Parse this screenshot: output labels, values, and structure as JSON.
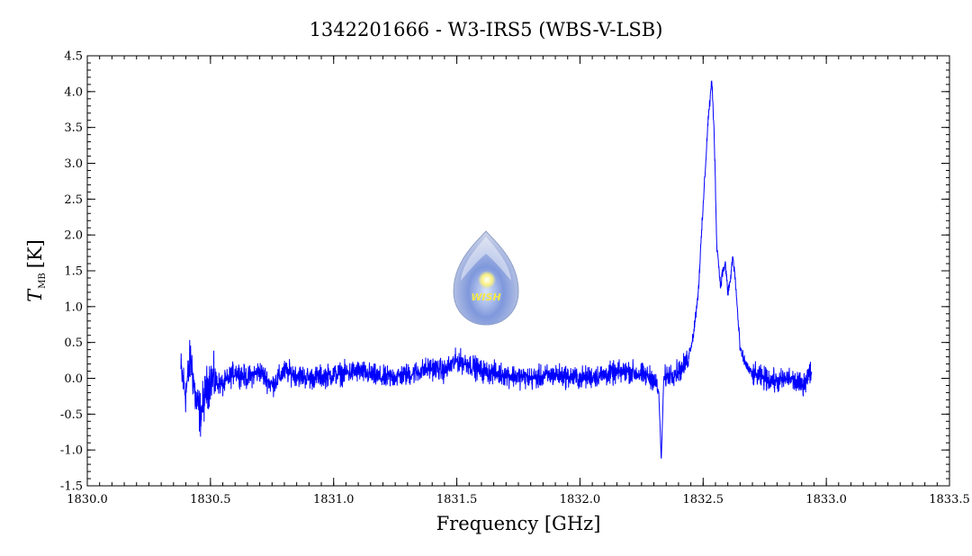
{
  "chart_data": {
    "type": "line",
    "title": "1342201666 - W3-IRS5 (WBS-V-LSB)",
    "xlabel": "Frequency [GHz]",
    "ylabel": {
      "main": "T",
      "sub": "MB",
      "unit": "[K]"
    },
    "xlim": [
      1830.0,
      1833.5
    ],
    "ylim": [
      -1.5,
      4.5
    ],
    "xticks": [
      "1830.0",
      "1830.5",
      "1831.0",
      "1831.5",
      "1832.0",
      "1832.5",
      "1833.0",
      "1833.5"
    ],
    "yticks": [
      "-1.5",
      "-1.0",
      "-0.5",
      "0.0",
      "0.5",
      "1.0",
      "1.5",
      "2.0",
      "2.5",
      "3.0",
      "3.5",
      "4.0",
      "4.5"
    ],
    "grid": false,
    "line_color": "#0000ff",
    "watermark_text": "WISH",
    "series": [
      {
        "x": [
          1830.38,
          1830.4,
          1830.42,
          1830.44,
          1830.46,
          1830.48,
          1830.5,
          1830.55,
          1830.6,
          1830.65,
          1830.7,
          1830.75,
          1830.8,
          1830.9,
          1831.0,
          1831.1,
          1831.2,
          1831.3,
          1831.4,
          1831.45,
          1831.5,
          1831.55,
          1831.6,
          1831.7,
          1831.8,
          1831.9,
          1832.0,
          1832.1,
          1832.2,
          1832.25,
          1832.3,
          1832.32,
          1832.33,
          1832.34,
          1832.36,
          1832.4,
          1832.42,
          1832.44,
          1832.46,
          1832.48,
          1832.5,
          1832.52,
          1832.535,
          1832.545,
          1832.555,
          1832.57,
          1832.58,
          1832.59,
          1832.6,
          1832.61,
          1832.62,
          1832.63,
          1832.64,
          1832.65,
          1832.66,
          1832.68,
          1832.7,
          1832.75,
          1832.8,
          1832.85,
          1832.9,
          1832.94
        ],
        "y": [
          0.1,
          -0.2,
          0.3,
          -0.3,
          -0.5,
          -0.2,
          0.0,
          -0.1,
          0.1,
          0.0,
          0.1,
          -0.1,
          0.1,
          0.0,
          0.05,
          0.1,
          0.0,
          0.05,
          0.15,
          0.1,
          0.25,
          0.2,
          0.1,
          0.05,
          0.0,
          0.05,
          0.0,
          0.05,
          0.1,
          0.05,
          0.0,
          -0.2,
          -1.15,
          0.0,
          0.05,
          0.1,
          0.15,
          0.3,
          0.6,
          1.2,
          2.4,
          3.6,
          4.15,
          3.4,
          1.9,
          1.3,
          1.5,
          1.6,
          1.2,
          1.35,
          1.7,
          1.4,
          0.9,
          0.4,
          0.3,
          0.15,
          0.05,
          0.0,
          -0.05,
          0.0,
          -0.1,
          0.1
        ]
      }
    ]
  }
}
